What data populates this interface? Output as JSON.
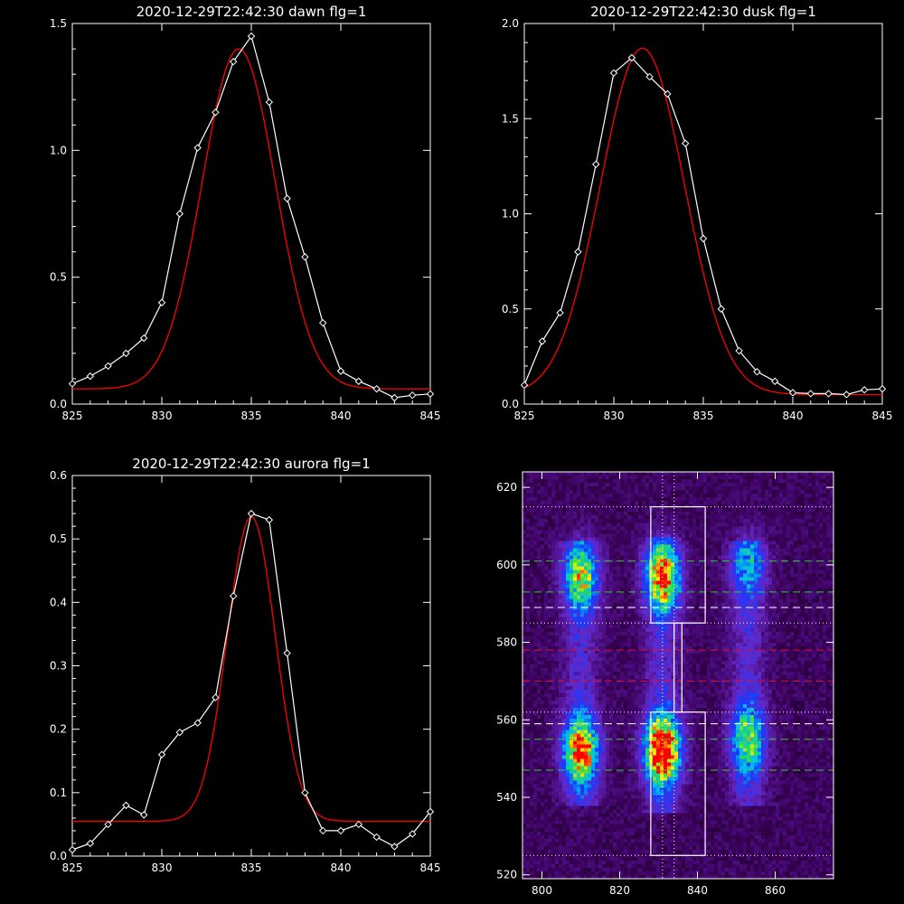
{
  "colors": {
    "background": "#000000",
    "axes": "#ffffff",
    "data_line": "#ffffff",
    "fit_line": "#ff0000",
    "green_dashes": "#33cc33",
    "red_dashes": "#dd1133"
  },
  "chart_data": [
    {
      "type": "line",
      "title": "2020-12-29T22:42:30 dawn flg=1",
      "xlim": [
        825,
        845
      ],
      "ylim": [
        0,
        1.5
      ],
      "xticks": [
        825,
        830,
        835,
        840,
        845
      ],
      "yticks": [
        0.0,
        0.5,
        1.0,
        1.5
      ],
      "ytick_labels": [
        "0.0",
        "0.5",
        "1.0",
        "1.5"
      ],
      "series": [
        {
          "style": "line-with-diamond-markers",
          "color": "#ffffff",
          "x": [
            825,
            826,
            827,
            828,
            829,
            830,
            831,
            832,
            833,
            834,
            835,
            836,
            837,
            838,
            839,
            840,
            841,
            842,
            843,
            844,
            845
          ],
          "y": [
            0.08,
            0.11,
            0.15,
            0.2,
            0.26,
            0.4,
            0.75,
            1.01,
            1.15,
            1.35,
            1.45,
            1.19,
            0.81,
            0.58,
            0.32,
            0.13,
            0.09,
            0.06,
            0.025,
            0.035,
            0.04
          ]
        },
        {
          "style": "smooth-line",
          "color": "#ff0000",
          "fit": {
            "kind": "gaussian",
            "amplitude": 1.34,
            "center": 834.3,
            "sigma": 2.05,
            "offset": 0.06
          }
        }
      ]
    },
    {
      "type": "line",
      "title": "2020-12-29T22:42:30 dusk flg=1",
      "xlim": [
        825,
        845
      ],
      "ylim": [
        0,
        2.0
      ],
      "xticks": [
        825,
        830,
        835,
        840,
        845
      ],
      "yticks": [
        0.0,
        0.5,
        1.0,
        1.5,
        2.0
      ],
      "ytick_labels": [
        "0.0",
        "0.5",
        "1.0",
        "1.5",
        "2.0"
      ],
      "series": [
        {
          "style": "line-with-diamond-markers",
          "color": "#ffffff",
          "x": [
            825,
            826,
            827,
            828,
            829,
            830,
            831,
            832,
            833,
            834,
            835,
            836,
            837,
            838,
            839,
            840,
            841,
            842,
            843,
            844,
            845
          ],
          "y": [
            0.1,
            0.33,
            0.48,
            0.8,
            1.26,
            1.74,
            1.82,
            1.72,
            1.63,
            1.37,
            0.87,
            0.5,
            0.28,
            0.17,
            0.12,
            0.06,
            0.055,
            0.055,
            0.05,
            0.075,
            0.08
          ]
        },
        {
          "style": "smooth-line",
          "color": "#ff0000",
          "fit": {
            "kind": "gaussian",
            "amplitude": 1.82,
            "center": 831.6,
            "sigma": 2.35,
            "offset": 0.05
          }
        }
      ]
    },
    {
      "type": "line",
      "title": "2020-12-29T22:42:30 aurora flg=1",
      "xlim": [
        825,
        845
      ],
      "ylim": [
        0,
        0.6
      ],
      "xticks": [
        825,
        830,
        835,
        840,
        845
      ],
      "yticks": [
        0.0,
        0.1,
        0.2,
        0.3,
        0.4,
        0.5,
        0.6
      ],
      "ytick_labels": [
        "0.0",
        "0.1",
        "0.2",
        "0.3",
        "0.4",
        "0.5",
        "0.6"
      ],
      "series": [
        {
          "style": "line-with-diamond-markers",
          "color": "#ffffff",
          "x": [
            825,
            826,
            827,
            828,
            829,
            830,
            831,
            832,
            833,
            834,
            835,
            836,
            837,
            838,
            839,
            840,
            841,
            842,
            843,
            844,
            845
          ],
          "y": [
            0.01,
            0.02,
            0.05,
            0.08,
            0.065,
            0.16,
            0.195,
            0.21,
            0.25,
            0.41,
            0.54,
            0.53,
            0.32,
            0.1,
            0.04,
            0.04,
            0.05,
            0.03,
            0.015,
            0.035,
            0.07
          ]
        },
        {
          "style": "smooth-line",
          "color": "#ff0000",
          "fit": {
            "kind": "gaussian",
            "amplitude": 0.48,
            "center": 835.0,
            "sigma": 1.35,
            "offset": 0.055
          }
        }
      ]
    },
    {
      "type": "heatmap",
      "title": "",
      "xlim": [
        795,
        875
      ],
      "ylim": [
        519,
        624
      ],
      "xticks": [
        800,
        820,
        840,
        860
      ],
      "yticks": [
        520,
        540,
        560,
        580,
        600,
        620
      ],
      "colormap": "rainbow (black-purple-blue-cyan-green-yellow-red)",
      "bands": [
        {
          "x_center": 810,
          "y_range": [
            538,
            606
          ],
          "peaks": [
            {
              "y": 552,
              "level": 0.75
            },
            {
              "y": 597,
              "level": 0.55
            }
          ]
        },
        {
          "x_center": 831,
          "y_range": [
            536,
            607
          ],
          "peaks": [
            {
              "y": 552,
              "level": 1.0
            },
            {
              "y": 597,
              "level": 0.75
            }
          ]
        },
        {
          "x_center": 853,
          "y_range": [
            538,
            606
          ],
          "peaks": [
            {
              "y": 555,
              "level": 0.5
            },
            {
              "y": 600,
              "level": 0.3
            }
          ]
        }
      ],
      "boxes": [
        {
          "x": [
            828,
            842
          ],
          "y": [
            525,
            562
          ]
        },
        {
          "x": [
            828,
            842
          ],
          "y": [
            585,
            615
          ]
        },
        {
          "x": [
            834,
            836
          ],
          "y": [
            562,
            585
          ]
        }
      ],
      "dotted_h_lines": [
        525,
        562,
        585,
        615
      ],
      "dotted_v_lines": [
        831,
        834
      ],
      "green_dashed_h_lines": [
        547,
        555,
        593,
        601
      ],
      "white_dashed_h_lines": [
        559,
        589
      ],
      "red_dashed_h_lines": [
        570,
        578
      ]
    }
  ]
}
